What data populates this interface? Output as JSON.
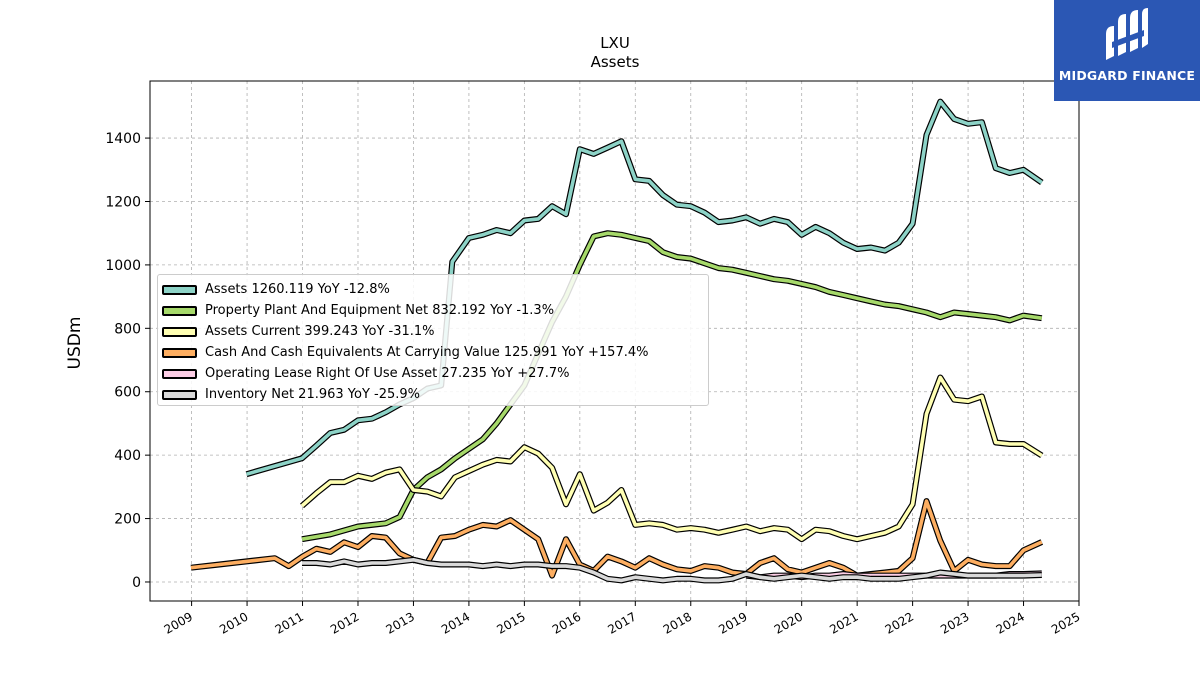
{
  "chart_data": {
    "type": "line",
    "title": "LXU",
    "subtitle": "Assets",
    "ylabel": "USDm",
    "xlabel": "",
    "xlim": [
      2008.25,
      2025
    ],
    "ylim": [
      -60,
      1580
    ],
    "x_ticks": [
      "2009",
      "2010",
      "2011",
      "2012",
      "2013",
      "2014",
      "2015",
      "2016",
      "2017",
      "2018",
      "2019",
      "2020",
      "2021",
      "2022",
      "2023",
      "2024",
      "2025"
    ],
    "y_ticks": [
      "0",
      "200",
      "400",
      "600",
      "800",
      "1000",
      "1200",
      "1400"
    ],
    "grid": true,
    "legend_position": "center-left",
    "series": [
      {
        "name": "Assets",
        "legend": "Assets  1260.119 YoY -12.8%",
        "color": "#8dd3c7",
        "x": [
          2009.99,
          2010.99,
          2011.25,
          2011.5,
          2011.75,
          2012.0,
          2012.25,
          2012.5,
          2012.75,
          2013.0,
          2013.25,
          2013.5,
          2013.7,
          2014.0,
          2014.25,
          2014.5,
          2014.75,
          2015.0,
          2015.25,
          2015.5,
          2015.75,
          2016.0,
          2016.25,
          2016.5,
          2016.75,
          2017.0,
          2017.25,
          2017.5,
          2017.75,
          2018.0,
          2018.25,
          2018.5,
          2018.75,
          2019.0,
          2019.25,
          2019.5,
          2019.75,
          2020.0,
          2020.25,
          2020.5,
          2020.75,
          2021.0,
          2021.25,
          2021.5,
          2021.75,
          2022.0,
          2022.25,
          2022.5,
          2022.75,
          2023.0,
          2023.25,
          2023.5,
          2023.75,
          2024.0,
          2024.33
        ],
        "values": [
          340,
          390,
          430,
          470,
          480,
          510,
          515,
          535,
          560,
          580,
          610,
          620,
          1010,
          1085,
          1095,
          1110,
          1100,
          1140,
          1145,
          1185,
          1160,
          1365,
          1350,
          1370,
          1390,
          1270,
          1265,
          1220,
          1190,
          1185,
          1165,
          1135,
          1140,
          1150,
          1130,
          1145,
          1135,
          1095,
          1120,
          1100,
          1070,
          1050,
          1055,
          1045,
          1070,
          1130,
          1410,
          1515,
          1460,
          1445,
          1450,
          1305,
          1290,
          1300,
          1260
        ]
      },
      {
        "name": "Property Plant And Equipment Net",
        "legend": "Property Plant And Equipment Net  832.192 YoY -1.3%",
        "color": "#a6d96a",
        "x": [
          2010.99,
          2011.5,
          2012.0,
          2012.5,
          2012.75,
          2013.0,
          2013.25,
          2013.5,
          2013.75,
          2014.0,
          2014.25,
          2014.5,
          2014.75,
          2015.0,
          2015.25,
          2015.5,
          2015.75,
          2016.0,
          2016.25,
          2016.5,
          2016.75,
          2017.0,
          2017.25,
          2017.5,
          2017.75,
          2018.0,
          2018.25,
          2018.5,
          2018.75,
          2019.0,
          2019.25,
          2019.5,
          2019.75,
          2020.0,
          2020.25,
          2020.5,
          2020.75,
          2021.0,
          2021.25,
          2021.5,
          2021.75,
          2022.0,
          2022.25,
          2022.5,
          2022.75,
          2023.0,
          2023.25,
          2023.5,
          2023.75,
          2024.0,
          2024.33
        ],
        "values": [
          135,
          150,
          175,
          185,
          205,
          290,
          330,
          355,
          390,
          420,
          450,
          500,
          560,
          620,
          720,
          820,
          900,
          1000,
          1090,
          1100,
          1095,
          1085,
          1075,
          1040,
          1025,
          1020,
          1005,
          990,
          985,
          975,
          965,
          955,
          950,
          940,
          930,
          915,
          905,
          895,
          885,
          875,
          870,
          860,
          850,
          835,
          850,
          845,
          840,
          835,
          825,
          840,
          832
        ]
      },
      {
        "name": "Assets Current",
        "legend": "Assets Current  399.243 YoY -31.1%",
        "color": "#ffffb3",
        "x": [
          2010.99,
          2011.25,
          2011.5,
          2011.75,
          2012.0,
          2012.25,
          2012.5,
          2012.75,
          2013.0,
          2013.25,
          2013.5,
          2013.75,
          2014.0,
          2014.25,
          2014.5,
          2014.75,
          2015.0,
          2015.25,
          2015.5,
          2015.75,
          2016.0,
          2016.25,
          2016.5,
          2016.75,
          2017.0,
          2017.25,
          2017.5,
          2017.75,
          2018.0,
          2018.25,
          2018.5,
          2018.75,
          2019.0,
          2019.25,
          2019.5,
          2019.75,
          2020.0,
          2020.25,
          2020.5,
          2020.75,
          2021.0,
          2021.25,
          2021.5,
          2021.75,
          2022.0,
          2022.25,
          2022.5,
          2022.75,
          2023.0,
          2023.25,
          2023.5,
          2023.75,
          2024.0,
          2024.33
        ],
        "values": [
          240,
          280,
          315,
          315,
          335,
          325,
          345,
          355,
          290,
          285,
          270,
          330,
          350,
          370,
          385,
          380,
          425,
          405,
          360,
          245,
          340,
          225,
          250,
          290,
          180,
          185,
          180,
          165,
          170,
          165,
          155,
          165,
          175,
          160,
          170,
          165,
          135,
          165,
          160,
          145,
          135,
          145,
          155,
          175,
          245,
          530,
          645,
          575,
          570,
          585,
          440,
          435,
          435,
          399
        ]
      },
      {
        "name": "Cash And Cash Equivalents At Carrying Value",
        "legend": "Cash And Cash Equivalents At Carrying Value  125.991 YoY +157.4%",
        "color": "#fdae61",
        "x": [
          2008.99,
          2009.5,
          2009.99,
          2010.5,
          2010.75,
          2011.0,
          2011.25,
          2011.5,
          2011.75,
          2012.0,
          2012.25,
          2012.5,
          2012.75,
          2013.0,
          2013.25,
          2013.5,
          2013.75,
          2014.0,
          2014.25,
          2014.5,
          2014.75,
          2015.0,
          2015.25,
          2015.5,
          2015.75,
          2016.0,
          2016.25,
          2016.5,
          2016.75,
          2017.0,
          2017.25,
          2017.5,
          2017.75,
          2018.0,
          2018.25,
          2018.5,
          2018.75,
          2019.0,
          2019.25,
          2019.5,
          2019.75,
          2020.0,
          2020.25,
          2020.5,
          2020.75,
          2021.0,
          2021.25,
          2021.5,
          2021.75,
          2022.0,
          2022.25,
          2022.5,
          2022.75,
          2023.0,
          2023.25,
          2023.5,
          2023.75,
          2024.0,
          2024.33
        ],
        "values": [
          45,
          55,
          65,
          75,
          50,
          80,
          105,
          95,
          125,
          110,
          145,
          140,
          90,
          70,
          60,
          140,
          145,
          165,
          180,
          175,
          195,
          165,
          135,
          20,
          135,
          55,
          35,
          80,
          65,
          45,
          75,
          55,
          40,
          35,
          50,
          45,
          30,
          25,
          60,
          75,
          40,
          30,
          45,
          60,
          45,
          20,
          25,
          30,
          35,
          75,
          255,
          130,
          35,
          70,
          55,
          50,
          50,
          100,
          126
        ]
      },
      {
        "name": "Operating Lease Right Of Use Asset",
        "legend": "Operating Lease Right Of Use Asset  27.235 YoY +27.7%",
        "color": "#fccde5",
        "x": [
          2019.0,
          2019.25,
          2019.5,
          2019.75,
          2020.0,
          2020.25,
          2020.5,
          2020.75,
          2021.0,
          2021.25,
          2021.5,
          2021.75,
          2022.0,
          2022.25,
          2022.5,
          2022.75,
          2023.0,
          2023.25,
          2023.5,
          2023.75,
          2024.0,
          2024.33
        ],
        "values": [
          20,
          15,
          20,
          20,
          15,
          20,
          20,
          25,
          20,
          20,
          20,
          20,
          20,
          20,
          20,
          20,
          20,
          20,
          20,
          25,
          25,
          27
        ]
      },
      {
        "name": "Inventory Net",
        "legend": "Inventory Net  21.963 YoY -25.9%",
        "color": "#d9d9d9",
        "x": [
          2010.99,
          2011.25,
          2011.5,
          2011.75,
          2012.0,
          2012.25,
          2012.5,
          2012.75,
          2013.0,
          2013.25,
          2013.5,
          2013.75,
          2014.0,
          2014.25,
          2014.5,
          2014.75,
          2015.0,
          2015.25,
          2015.5,
          2015.75,
          2016.0,
          2016.25,
          2016.5,
          2016.75,
          2017.0,
          2017.25,
          2017.5,
          2017.75,
          2018.0,
          2018.25,
          2018.5,
          2018.75,
          2019.0,
          2019.25,
          2019.5,
          2019.75,
          2020.0,
          2020.25,
          2020.5,
          2020.75,
          2021.0,
          2021.25,
          2021.5,
          2021.75,
          2022.0,
          2022.25,
          2022.5,
          2022.75,
          2023.0,
          2023.25,
          2023.5,
          2023.75,
          2024.0,
          2024.33
        ],
        "values": [
          60,
          60,
          55,
          65,
          55,
          60,
          60,
          65,
          70,
          60,
          55,
          55,
          55,
          50,
          55,
          50,
          55,
          55,
          50,
          50,
          45,
          30,
          10,
          5,
          15,
          10,
          5,
          10,
          10,
          5,
          5,
          10,
          25,
          15,
          10,
          15,
          20,
          15,
          10,
          15,
          15,
          10,
          10,
          10,
          15,
          20,
          30,
          25,
          20,
          20,
          20,
          20,
          20,
          22
        ]
      }
    ]
  },
  "logo": {
    "text": "MIDGARD FINANCE",
    "color": "#2b57b4"
  }
}
